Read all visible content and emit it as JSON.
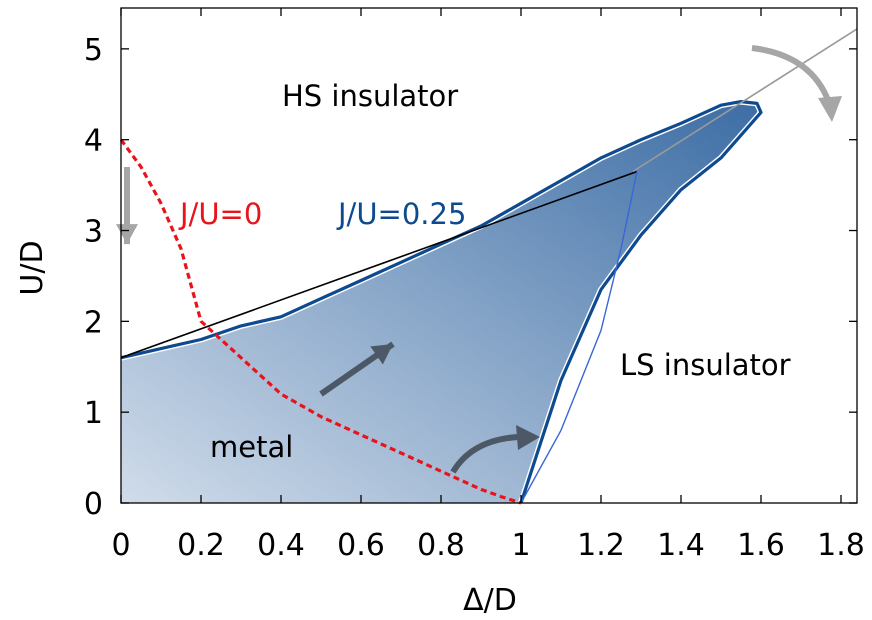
{
  "chart_data": {
    "type": "line",
    "title": "",
    "xlabel": "Δ/D",
    "ylabel": "U/D",
    "xlim": [
      0,
      1.84
    ],
    "ylim": [
      0,
      5.45
    ],
    "x_ticks": [
      0,
      0.2,
      0.4,
      0.6,
      0.8,
      1,
      1.2,
      1.4,
      1.6,
      1.8
    ],
    "x_tick_labels": [
      "0",
      "0.2",
      "0.4",
      "0.6",
      "0.8",
      "1",
      "1.2",
      "1.4",
      "1.6",
      "1.8"
    ],
    "y_ticks": [
      0,
      1,
      2,
      3,
      4,
      5
    ],
    "y_tick_labels": [
      "0",
      "1",
      "2",
      "3",
      "4",
      "5"
    ],
    "grid": false,
    "colors": {
      "ju0": "#e8141b",
      "ju025": "#0d4a8f",
      "metal_fill_light": "#cdd9e8",
      "metal_fill_dark": "#3e6fa6",
      "gray_arrow": "#a6a6a6",
      "dark_arrow": "#4d5866",
      "thin_blue": "#3a66d6",
      "diagonal": "#9a9a9a"
    },
    "series": [
      {
        "name": "J/U=0",
        "style": "dashed",
        "x": [
          0,
          0.05,
          0.1,
          0.15,
          0.2,
          0.3,
          0.4,
          0.5,
          0.6,
          0.7,
          0.8,
          0.9,
          0.95,
          1.0
        ],
        "y": [
          4.0,
          3.7,
          3.3,
          2.8,
          2.0,
          1.6,
          1.2,
          0.95,
          0.75,
          0.55,
          0.35,
          0.15,
          0.07,
          0
        ]
      },
      {
        "name": "J/U=0.25",
        "style": "solid",
        "region": "metal",
        "x": [
          0,
          0.1,
          0.2,
          0.3,
          0.4,
          0.5,
          0.6,
          0.7,
          0.8,
          0.9,
          1.0,
          1.1,
          1.2,
          1.3,
          1.4,
          1.5,
          1.55,
          1.59,
          1.6,
          1.57,
          1.5,
          1.4,
          1.3,
          1.2,
          1.1,
          1.0
        ],
        "y": [
          1.6,
          1.7,
          1.8,
          1.95,
          2.05,
          2.25,
          2.45,
          2.65,
          2.85,
          3.05,
          3.3,
          3.55,
          3.8,
          4.0,
          4.18,
          4.38,
          4.42,
          4.4,
          4.3,
          4.15,
          3.8,
          3.45,
          2.95,
          2.35,
          1.35,
          0
        ]
      },
      {
        "style": "thin-black",
        "x": [
          0,
          1.29
        ],
        "y": [
          1.6,
          3.65
        ]
      },
      {
        "style": "thin-gray",
        "x": [
          1.28,
          1.84
        ],
        "y": [
          3.65,
          5.22
        ]
      },
      {
        "style": "thin-blue",
        "x": [
          1.0,
          1.1,
          1.2,
          1.25,
          1.29
        ],
        "y": [
          0,
          0.8,
          1.9,
          2.8,
          3.65
        ]
      }
    ],
    "annotations": {
      "hs_insulator": "HS insulator",
      "ls_insulator": "LS insulator",
      "metal": "metal",
      "ju0_label": "J/U=0",
      "ju025_label": "J/U=0.25"
    }
  }
}
